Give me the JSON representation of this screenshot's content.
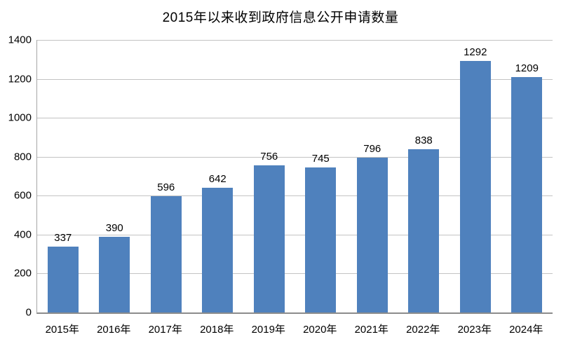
{
  "chart_data": {
    "type": "bar",
    "title": "2015年以来收到政府信息公开申请数量",
    "categories": [
      "2015年",
      "2016年",
      "2017年",
      "2018年",
      "2019年",
      "2020年",
      "2021年",
      "2022年",
      "2023年",
      "2024年"
    ],
    "values": [
      337,
      390,
      596,
      642,
      756,
      745,
      796,
      838,
      1292,
      1209
    ],
    "xlabel": "",
    "ylabel": "",
    "ylim": [
      0,
      1400
    ],
    "yticks": [
      0,
      200,
      400,
      600,
      800,
      1000,
      1200,
      1400
    ],
    "grid": true,
    "legend_position": "none",
    "data_labels": true,
    "colors": {
      "bar": "#4F81BD",
      "gridline": "#C3C3C3",
      "axis_line": "#8C8C8C",
      "text": "#000000",
      "background": "#FFFFFF"
    }
  }
}
